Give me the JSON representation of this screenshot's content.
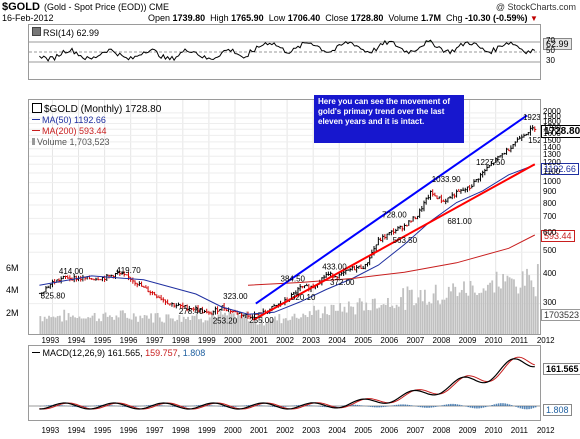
{
  "header": {
    "symbol": "$GOLD",
    "description": "(Gold - Spot Price (EOD)) CME",
    "watermark": "@ StockCharts.com",
    "date": "16-Feb-2012",
    "open_label": "Open",
    "open": "1739.80",
    "high_label": "High",
    "high": "1765.90",
    "low_label": "Low",
    "low": "1706.40",
    "close_label": "Close",
    "close": "1728.80",
    "volume_label": "Volume",
    "volume": "1.7M",
    "chg_label": "Chg",
    "chg": "-10.30 (-0.59%)",
    "down_icon": "down-triangle-icon"
  },
  "rsi": {
    "legend": "RSI(14) 62.99",
    "value_tag": "62.99",
    "ticks": [
      "70",
      "50",
      "30"
    ]
  },
  "price_legend": {
    "symbol": "$GOLD (Monthly) 1728.80",
    "ma50": "MA(50) 1192.66",
    "ma200": "MA(200) 593.44",
    "volume": "Volume 1,703,523"
  },
  "annotation": "Here you can see the movement of gold's primary trend over the last eleven years and it is intact.",
  "price_axis": {
    "ticks": [
      "2000",
      "1900",
      "1800",
      "1700",
      "1600",
      "1500",
      "1400",
      "1300",
      "1200",
      "1100",
      "1000",
      "900",
      "800",
      "700",
      "600",
      "500",
      "400",
      "300"
    ],
    "tags": {
      "close": "1728.80",
      "ma50": "1192.66",
      "ma200": "593.44",
      "volume": "1703523"
    }
  },
  "volume_axis": {
    "ticks": [
      "6M",
      "4M",
      "2M"
    ]
  },
  "years": [
    "1993",
    "1994",
    "1995",
    "1996",
    "1997",
    "1998",
    "1999",
    "2000",
    "2001",
    "2002",
    "2003",
    "2004",
    "2005",
    "2006",
    "2007",
    "2008",
    "2009",
    "2010",
    "2011",
    "2012"
  ],
  "macd": {
    "legend_name": "MACD(12,26,9)",
    "macd": "161.565",
    "signal": "159.757",
    "hist": "1.808",
    "tags": {
      "macd": "161.565",
      "hist": "1.808"
    }
  },
  "colors": {
    "gold_up": "#000000",
    "gold_down": "#d00000",
    "ma50": "#1f2fa0",
    "ma200": "#c81e1e",
    "trend_upper": "#0000ff",
    "trend_lower": "#ff0000",
    "volume": "#c0c0c0",
    "annotation_bg": "#1717ce",
    "rsi_fill": "#3f7a3f"
  },
  "chart_data": {
    "type": "line",
    "title": "$GOLD (Gold - Spot Price (EOD)) CME",
    "xlabel": "",
    "ylabel": "",
    "scale": "log",
    "ylim": [
      240,
      2100
    ],
    "x": [
      1993,
      1993.5,
      1994,
      1994.5,
      1995,
      1995.5,
      1996,
      1996.5,
      1997,
      1997.5,
      1998,
      1998.5,
      1999,
      1999.5,
      2000,
      2000.5,
      2001,
      2001.5,
      2002,
      2002.5,
      2003,
      2003.5,
      2004,
      2004.5,
      2005,
      2005.5,
      2006,
      2006.5,
      2007,
      2007.5,
      2008,
      2008.5,
      2009,
      2009.5,
      2010,
      2010.5,
      2011,
      2011.5,
      2012
    ],
    "series": [
      {
        "name": "$GOLD (Monthly)",
        "values": [
          330,
          370,
          390,
          385,
          385,
          388,
          405,
          385,
          350,
          325,
          300,
          290,
          285,
          270,
          290,
          275,
          265,
          270,
          290,
          310,
          350,
          355,
          400,
          395,
          425,
          435,
          560,
          610,
          650,
          720,
          900,
          830,
          900,
          950,
          1100,
          1250,
          1400,
          1600,
          1728.8
        ]
      }
    ],
    "labeled_points": [
      {
        "x": 1993.2,
        "y": 325.8,
        "label": "325.80"
      },
      {
        "x": 1993.9,
        "y": 414.0,
        "label": "414.00"
      },
      {
        "x": 1996.1,
        "y": 419.7,
        "label": "419.70"
      },
      {
        "x": 1998.5,
        "y": 278.4,
        "label": "278.40"
      },
      {
        "x": 1999.8,
        "y": 253.2,
        "label": "253.20"
      },
      {
        "x": 2000.2,
        "y": 323.0,
        "label": "323.00"
      },
      {
        "x": 2001.2,
        "y": 255.0,
        "label": "255.00"
      },
      {
        "x": 2002.4,
        "y": 384.5,
        "label": "384.50"
      },
      {
        "x": 2002.8,
        "y": 320.1,
        "label": "320.10"
      },
      {
        "x": 2004.0,
        "y": 433.0,
        "label": "433.00"
      },
      {
        "x": 2004.3,
        "y": 372.0,
        "label": "372.00"
      },
      {
        "x": 2006.3,
        "y": 728.0,
        "label": "728.00"
      },
      {
        "x": 2006.7,
        "y": 563.5,
        "label": "563.50"
      },
      {
        "x": 2008.2,
        "y": 1033.9,
        "label": "1033.90"
      },
      {
        "x": 2008.8,
        "y": 681.0,
        "label": "681.00"
      },
      {
        "x": 2009.9,
        "y": 1227.5,
        "label": "1227.50"
      },
      {
        "x": 2011.7,
        "y": 1923.7,
        "label": "1923.70"
      },
      {
        "x": 2011.9,
        "y": 1523.9,
        "label": "1523.90"
      }
    ],
    "overlays": [
      {
        "name": "MA(50)",
        "x": [
          1993,
          1995,
          1997,
          1999,
          2000,
          2001,
          2002,
          2003,
          2004,
          2005,
          2006,
          2007,
          2008,
          2009,
          2010,
          2011,
          2012
        ],
        "values": [
          360,
          395,
          380,
          330,
          290,
          270,
          275,
          305,
          345,
          385,
          440,
          540,
          680,
          820,
          920,
          1080,
          1192.66
        ]
      },
      {
        "name": "MA(200)",
        "x": [
          2001,
          2003,
          2005,
          2007,
          2009,
          2011,
          2012
        ],
        "values": [
          360,
          370,
          385,
          410,
          450,
          520,
          593.44
        ]
      }
    ],
    "trendlines": [
      {
        "name": "upper",
        "x": [
          2001.3,
          2011.7
        ],
        "values": [
          300,
          1950
        ]
      },
      {
        "name": "lower",
        "x": [
          2001.2,
          2012
        ],
        "values": [
          255,
          1200
        ]
      }
    ]
  }
}
